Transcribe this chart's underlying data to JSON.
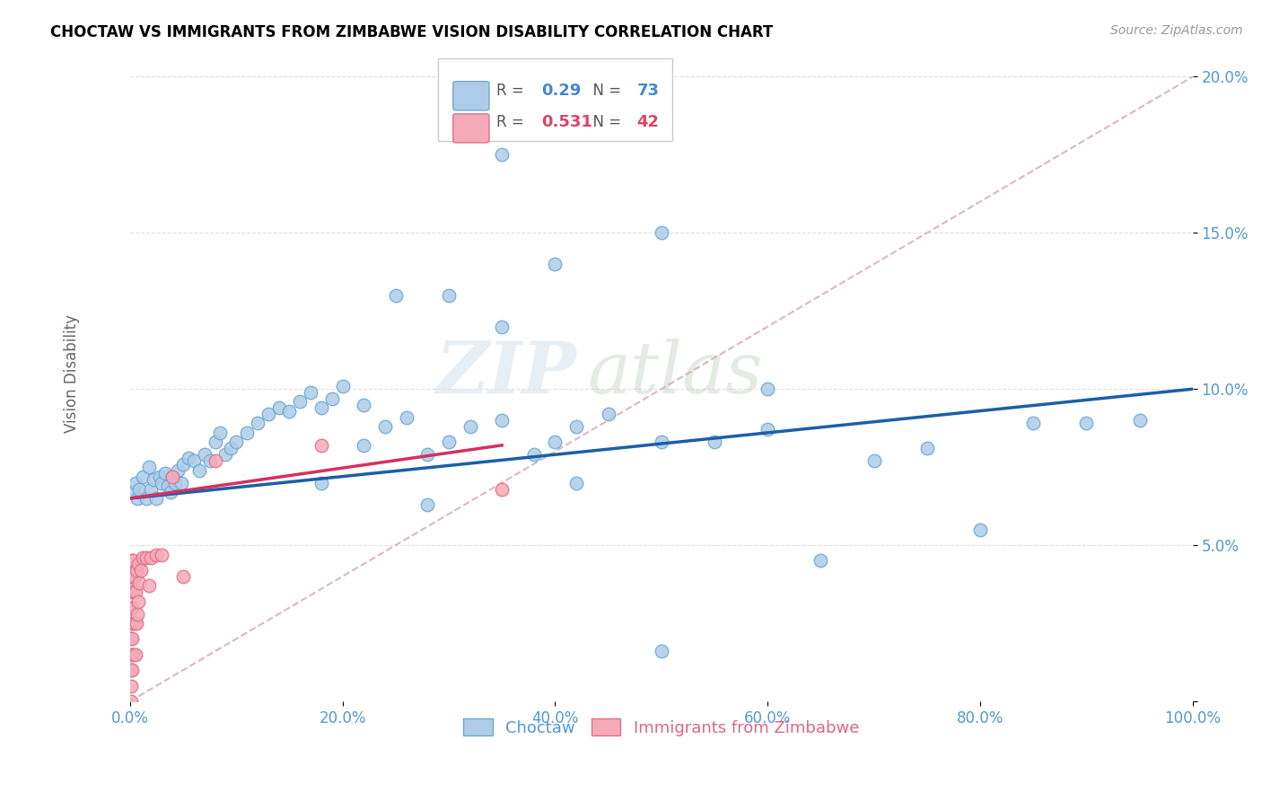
{
  "title": "CHOCTAW VS IMMIGRANTS FROM ZIMBABWE VISION DISABILITY CORRELATION CHART",
  "source": "Source: ZipAtlas.com",
  "ylabel": "Vision Disability",
  "xlim": [
    0,
    1.0
  ],
  "ylim": [
    0,
    0.21
  ],
  "xticks": [
    0.0,
    0.2,
    0.4,
    0.6,
    0.8,
    1.0
  ],
  "yticks": [
    0.0,
    0.05,
    0.1,
    0.15,
    0.2
  ],
  "choctaw_R": 0.29,
  "choctaw_N": 73,
  "zimbabwe_R": 0.531,
  "zimbabwe_N": 42,
  "choctaw_color": "#aecce8",
  "choctaw_edge": "#6aaad4",
  "choctaw_line_color": "#1a5fa8",
  "zimbabwe_color": "#f5aab8",
  "zimbabwe_edge": "#e07088",
  "zimbabwe_line_color": "#d43060",
  "ref_line_color": "#d8b0c0",
  "watermark_zip": "ZIP",
  "watermark_atlas": "atlas",
  "choctaw_x": [
    0.003,
    0.005,
    0.007,
    0.009,
    0.012,
    0.015,
    0.018,
    0.02,
    0.022,
    0.025,
    0.028,
    0.03,
    0.033,
    0.036,
    0.038,
    0.04,
    0.042,
    0.045,
    0.048,
    0.05,
    0.055,
    0.06,
    0.065,
    0.07,
    0.075,
    0.08,
    0.085,
    0.09,
    0.095,
    0.1,
    0.11,
    0.12,
    0.13,
    0.14,
    0.15,
    0.16,
    0.17,
    0.18,
    0.19,
    0.2,
    0.22,
    0.24,
    0.26,
    0.28,
    0.3,
    0.32,
    0.35,
    0.38,
    0.4,
    0.42,
    0.45,
    0.5,
    0.55,
    0.6,
    0.65,
    0.7,
    0.75,
    0.8,
    0.85,
    0.9,
    0.95,
    0.35,
    0.4,
    0.5,
    0.35,
    0.6,
    0.25,
    0.3,
    0.22,
    0.18,
    0.42,
    0.28,
    0.5
  ],
  "choctaw_y": [
    0.067,
    0.07,
    0.065,
    0.068,
    0.072,
    0.065,
    0.075,
    0.068,
    0.071,
    0.065,
    0.072,
    0.07,
    0.073,
    0.069,
    0.067,
    0.072,
    0.07,
    0.074,
    0.07,
    0.076,
    0.078,
    0.077,
    0.074,
    0.079,
    0.077,
    0.083,
    0.086,
    0.079,
    0.081,
    0.083,
    0.086,
    0.089,
    0.092,
    0.094,
    0.093,
    0.096,
    0.099,
    0.094,
    0.097,
    0.101,
    0.082,
    0.088,
    0.091,
    0.079,
    0.083,
    0.088,
    0.09,
    0.079,
    0.083,
    0.088,
    0.092,
    0.083,
    0.083,
    0.087,
    0.045,
    0.077,
    0.081,
    0.055,
    0.089,
    0.089,
    0.09,
    0.175,
    0.14,
    0.15,
    0.12,
    0.1,
    0.13,
    0.13,
    0.095,
    0.07,
    0.07,
    0.063,
    0.016
  ],
  "zimbabwe_x": [
    0.001,
    0.001,
    0.001,
    0.001,
    0.001,
    0.001,
    0.001,
    0.001,
    0.001,
    0.001,
    0.001,
    0.002,
    0.002,
    0.002,
    0.002,
    0.002,
    0.003,
    0.003,
    0.003,
    0.003,
    0.004,
    0.004,
    0.005,
    0.005,
    0.006,
    0.006,
    0.007,
    0.008,
    0.008,
    0.009,
    0.01,
    0.012,
    0.015,
    0.018,
    0.02,
    0.025,
    0.03,
    0.04,
    0.05,
    0.08,
    0.18,
    0.35
  ],
  "zimbabwe_y": [
    0.0,
    0.005,
    0.01,
    0.015,
    0.02,
    0.025,
    0.03,
    0.035,
    0.038,
    0.04,
    0.042,
    0.01,
    0.02,
    0.03,
    0.04,
    0.045,
    0.015,
    0.025,
    0.035,
    0.045,
    0.025,
    0.04,
    0.015,
    0.035,
    0.025,
    0.042,
    0.028,
    0.032,
    0.044,
    0.038,
    0.042,
    0.046,
    0.046,
    0.037,
    0.046,
    0.047,
    0.047,
    0.072,
    0.04,
    0.077,
    0.082,
    0.068
  ],
  "choctaw_line_x": [
    0.0,
    1.0
  ],
  "choctaw_line_y": [
    0.065,
    0.1
  ],
  "zimbabwe_line_x": [
    0.0,
    0.35
  ],
  "zimbabwe_line_y": [
    0.065,
    0.082
  ],
  "ref_line_x": [
    0.0,
    1.0
  ],
  "ref_line_y": [
    0.0,
    0.2
  ]
}
